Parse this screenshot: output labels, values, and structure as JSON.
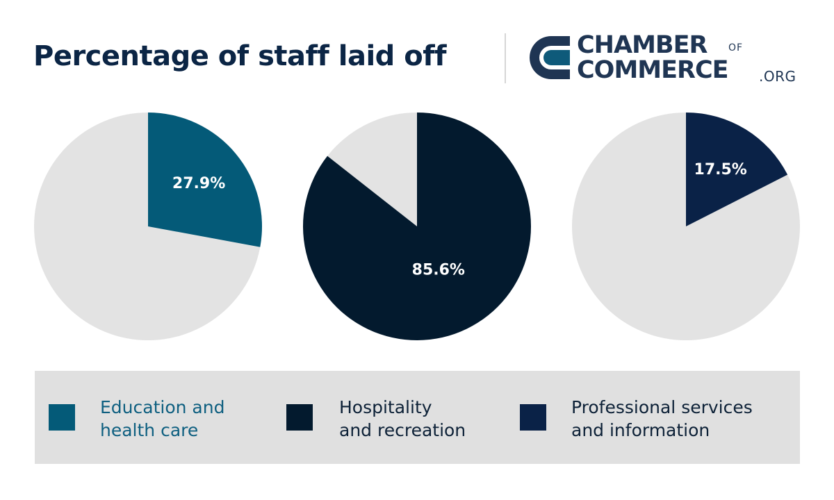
{
  "header": {
    "title": "Percentage of staff laid off",
    "title_color": "#0b2545"
  },
  "logo": {
    "word1": "CHAMBER",
    "word_of": "OF",
    "word2": "COMMERCE",
    "word_org": ".ORG",
    "mark_icon": "chamber-c-mark-icon",
    "primary_color": "#1f3553",
    "accent_color": "#0e5a7a"
  },
  "chart_data": {
    "type": "pie",
    "background_color": "#e3e3e3",
    "series": [
      {
        "name": "Education and health care",
        "value": 27.9,
        "label": "27.9%",
        "color": "#045a78"
      },
      {
        "name": "Hospitality and recreation",
        "value": 85.6,
        "label": "85.6%",
        "color": "#031a2e"
      },
      {
        "name": "Professional services and information",
        "value": 17.5,
        "label": "17.5%",
        "color": "#0a2247"
      }
    ]
  },
  "legend": {
    "items": [
      {
        "line1": "Education and",
        "line2": "health care",
        "color": "#045a78",
        "text_color": "#0e5f80"
      },
      {
        "line1": "Hospitality",
        "line2": "and recreation",
        "color": "#031a2e",
        "text_color": "#0d2137"
      },
      {
        "line1": "Professional services",
        "line2": "and information",
        "color": "#0a2247",
        "text_color": "#0d2137"
      }
    ]
  }
}
